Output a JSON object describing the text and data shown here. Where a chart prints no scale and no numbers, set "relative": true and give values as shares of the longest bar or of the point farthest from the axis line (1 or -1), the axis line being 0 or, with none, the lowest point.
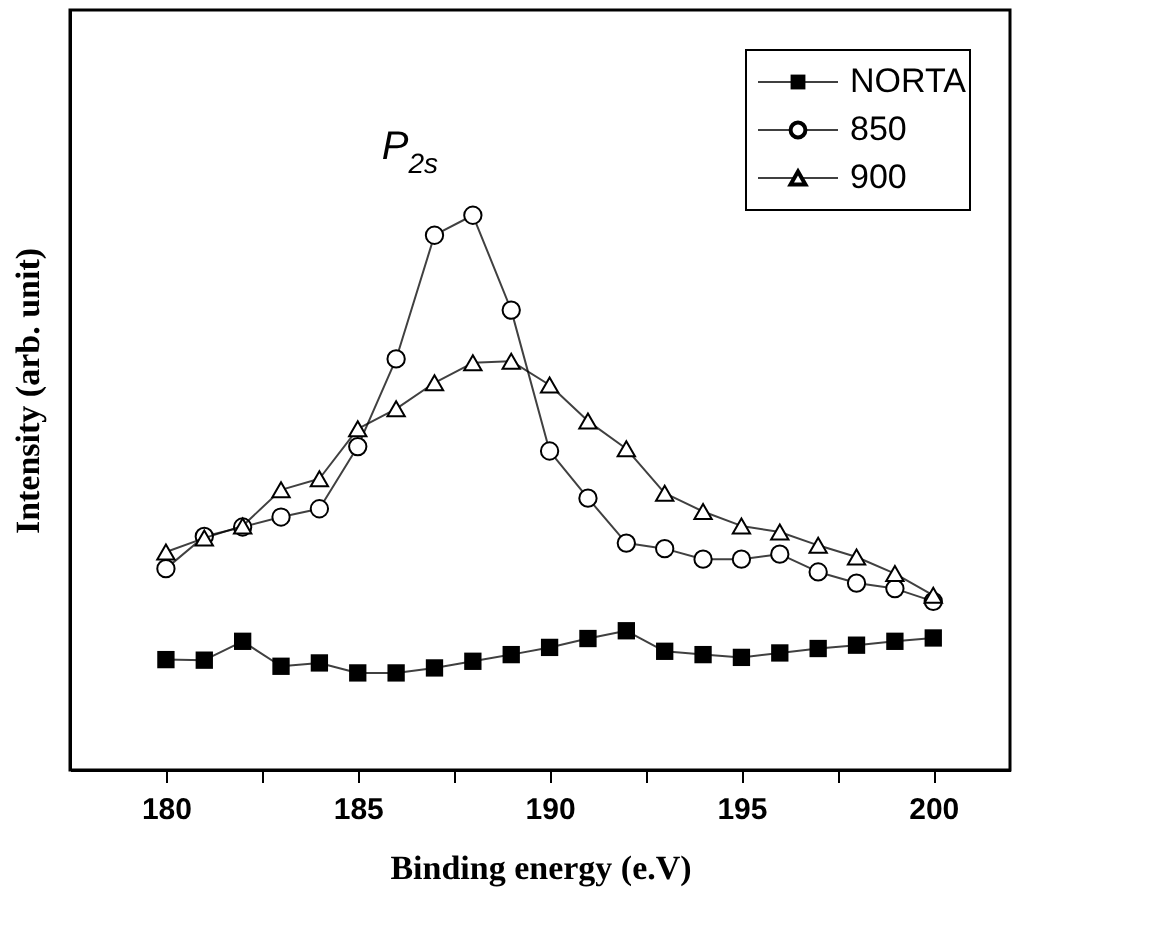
{
  "chart_data": {
    "type": "line",
    "xlabel": "Binding energy (e.V)",
    "ylabel": "Intensity (arb. unit)",
    "relative": true,
    "tick_labels": "x",
    "legend": "top right",
    "grid": false,
    "x": [
      180,
      181,
      182,
      183,
      184,
      185,
      186,
      187,
      188,
      189,
      190,
      191,
      192,
      193,
      194,
      195,
      196,
      197,
      198,
      199,
      200
    ],
    "xlim": [
      177.5,
      202
    ],
    "xticks": [
      180,
      {
        "value": 182.5,
        "label": null
      },
      185,
      {
        "value": 187.5,
        "label": null
      },
      190,
      {
        "value": 192.5,
        "label": null
      },
      195,
      {
        "value": 197.5,
        "label": null
      },
      200
    ],
    "series": [
      {
        "name": "NORTA",
        "color": "#000000",
        "marker": "square",
        "values": [
          0.199,
          0.198,
          0.232,
          0.187,
          0.193,
          0.175,
          0.175,
          0.184,
          0.196,
          0.208,
          0.221,
          0.237,
          0.251,
          0.214,
          0.208,
          0.203,
          0.211,
          0.219,
          0.225,
          0.232,
          0.238
        ]
      },
      {
        "name": "850",
        "color": "#000000",
        "marker": "circle",
        "values": [
          0.363,
          0.421,
          0.438,
          0.456,
          0.471,
          0.583,
          0.741,
          0.964,
          1.0,
          0.829,
          0.575,
          0.49,
          0.409,
          0.399,
          0.38,
          0.38,
          0.389,
          0.357,
          0.337,
          0.327,
          0.304
        ]
      },
      {
        "name": "900",
        "color": "#000000",
        "marker": "triangle",
        "values": [
          0.393,
          0.418,
          0.44,
          0.505,
          0.525,
          0.615,
          0.651,
          0.698,
          0.734,
          0.737,
          0.694,
          0.629,
          0.579,
          0.499,
          0.466,
          0.44,
          0.429,
          0.405,
          0.384,
          0.354,
          0.315
        ]
      }
    ],
    "annotations": [
      "P$_{2s}$"
    ]
  }
}
